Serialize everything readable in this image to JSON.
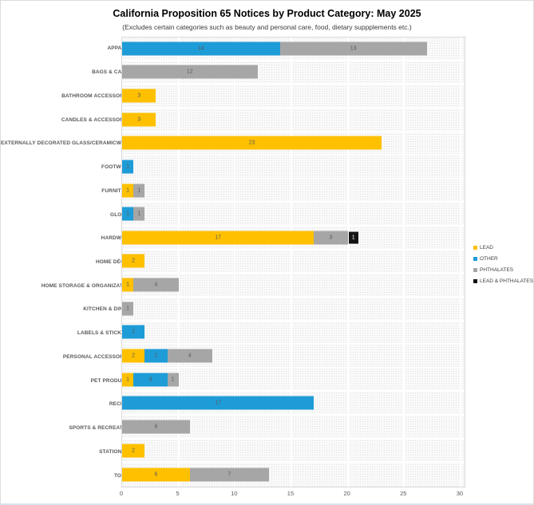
{
  "header": {
    "title": "California Proposition 65 Notices by Product Category: May 2025",
    "subtitle": "(Excludes certain categories such as beauty and personal care, food, dietary suppplements etc.)"
  },
  "legend": [
    {
      "label": "LEAD",
      "color": "#FFC000"
    },
    {
      "label": "OTHER",
      "color": "#1E9CD7"
    },
    {
      "label": "PHTHALATES",
      "color": "#A6A6A6"
    },
    {
      "label": "LEAD & PHTHALATES",
      "color": "#141414"
    }
  ],
  "chart_data": {
    "type": "bar",
    "orientation": "horizontal",
    "stacked": true,
    "title": "California Proposition 65 Notices by Product Category: May 2025",
    "subtitle": "(Excludes certain categories such as beauty and personal care, food, dietary suppplements etc.)",
    "categories": [
      "APPAREL",
      "BAGS & CASES",
      "BATHROOM ACCESSORIES",
      "CANDLES & ACCESSORIES",
      "EXTERNALLY DECORATED GLASS/CERAMICWARE",
      "FOOTWEAR",
      "FURNITURE",
      "GLOVES",
      "HARDWARE",
      "HOME DÉCOR",
      "HOME STORAGE & ORGANIZATION",
      "KITCHEN & DINING",
      "LABELS & STICKERS",
      "PERSONAL ACCESSORIES",
      "PET PRODUCTS",
      "RECEIPT",
      "SPORTS & RECREATION",
      "STATIONERY",
      "TOOLS"
    ],
    "series": [
      {
        "name": "LEAD",
        "color": "#FFC000",
        "values": [
          0,
          0,
          3,
          3,
          23,
          0,
          1,
          0,
          17,
          2,
          1,
          0,
          0,
          2,
          1,
          0,
          0,
          2,
          6
        ]
      },
      {
        "name": "OTHER",
        "color": "#1E9CD7",
        "values": [
          14,
          0,
          0,
          0,
          0,
          1,
          0,
          1,
          0,
          0,
          0,
          0,
          2,
          2,
          3,
          17,
          0,
          0,
          0
        ]
      },
      {
        "name": "PHTHALATES",
        "color": "#A6A6A6",
        "values": [
          13,
          12,
          0,
          0,
          0,
          0,
          1,
          1,
          3,
          0,
          4,
          1,
          0,
          4,
          1,
          0,
          6,
          0,
          7
        ]
      },
      {
        "name": "LEAD & PHTHALATES",
        "color": "#141414",
        "values": [
          0,
          0,
          0,
          0,
          0,
          0,
          0,
          0,
          1,
          0,
          0,
          0,
          0,
          0,
          0,
          0,
          0,
          0,
          0
        ]
      }
    ],
    "x_ticks": [
      0,
      5,
      10,
      15,
      20,
      25,
      30
    ],
    "xlim": [
      0,
      30.5
    ],
    "grid": true,
    "legend_position": "right",
    "data_labels": true
  }
}
